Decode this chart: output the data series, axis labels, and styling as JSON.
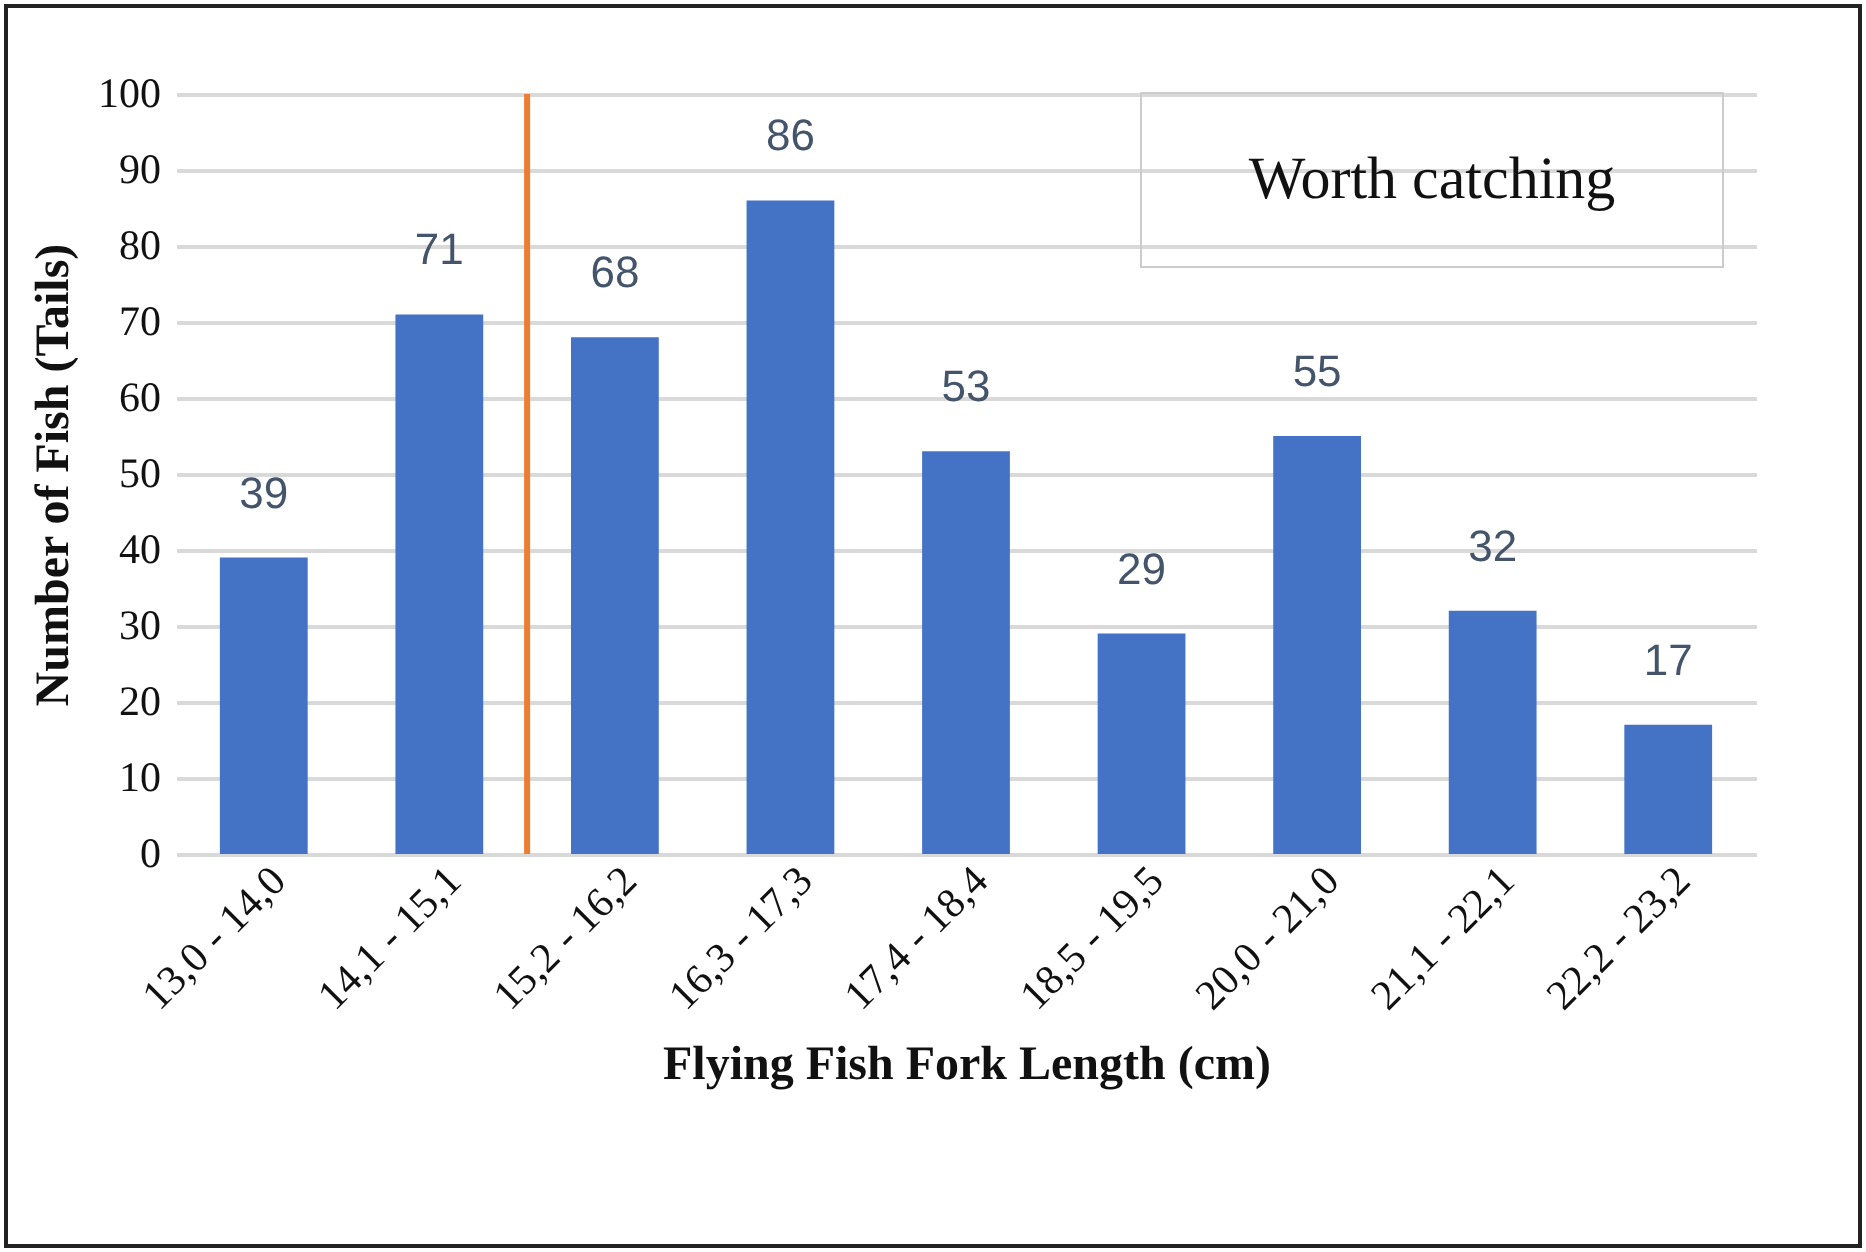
{
  "chart_data": {
    "type": "bar",
    "xlabel": "Flying Fish Fork Length (cm)",
    "ylabel": "Number of Fish (Tails)",
    "categories": [
      "13,0 - 14,0",
      "14,1 - 15,1",
      "15,2 - 16,2",
      "16,3 - 17,3",
      "17,4 - 18,4",
      "18,5 - 19,5",
      "20,0 - 21,0",
      "21,1 - 22,1",
      "22,2 - 23,2"
    ],
    "values": [
      39,
      71,
      68,
      86,
      53,
      29,
      55,
      32,
      17
    ],
    "color": "#4472c4",
    "ylim": [
      0,
      100
    ],
    "yticks": [
      0,
      10,
      20,
      30,
      40,
      50,
      60,
      70,
      80,
      90,
      100
    ],
    "grid": "y",
    "data_labels": true,
    "ref_lines": [
      {
        "axis": "x",
        "value": "15,2 - 16,2",
        "color": "#ed7d31"
      }
    ],
    "annotations": [
      "Worth catching"
    ]
  }
}
